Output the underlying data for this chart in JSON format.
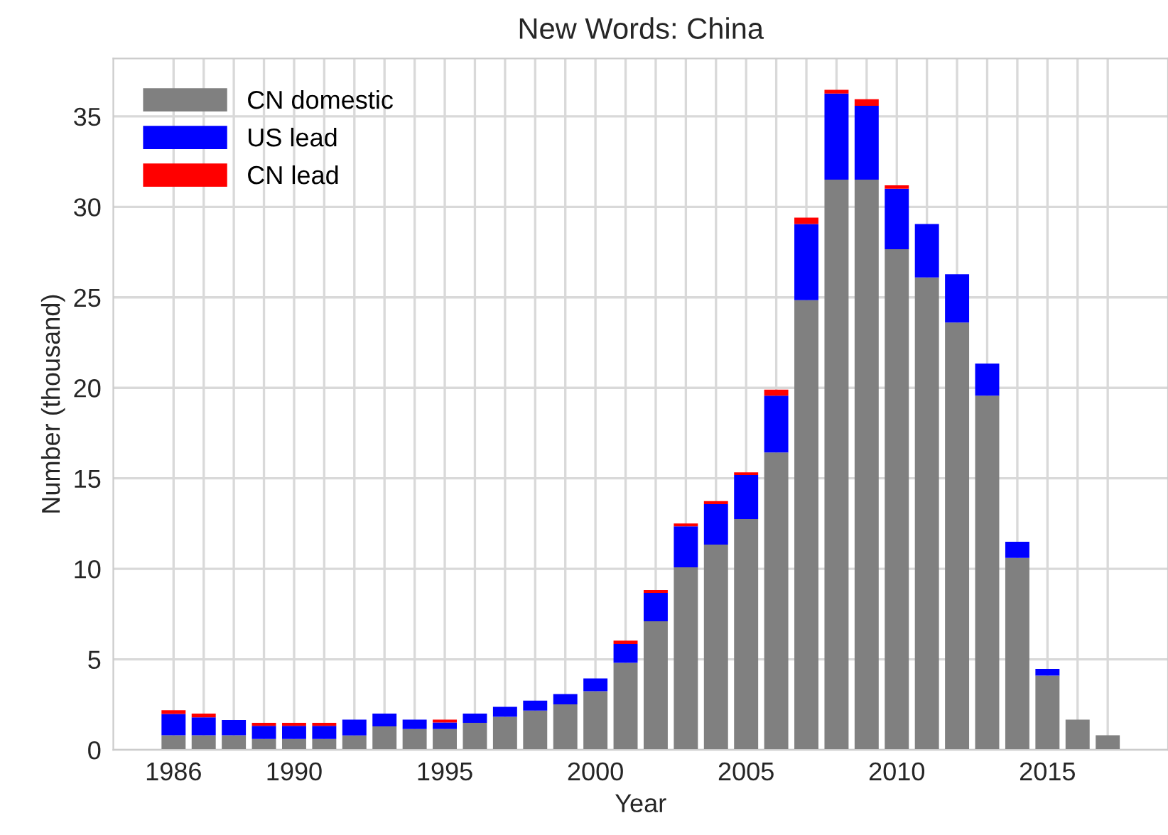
{
  "chart_data": {
    "type": "bar",
    "stacked": true,
    "title": "New Words: China",
    "xlabel": "Year",
    "ylabel": "Number (thousand)",
    "x": [
      1986,
      1987,
      1988,
      1989,
      1990,
      1991,
      1992,
      1993,
      1994,
      1995,
      1996,
      1997,
      1998,
      1999,
      2000,
      2001,
      2002,
      2003,
      2004,
      2005,
      2006,
      2007,
      2008,
      2009,
      2010,
      2011,
      2012,
      2013,
      2014,
      2015,
      2016,
      2017
    ],
    "series": [
      {
        "name": "CN domestic",
        "color": "#808080",
        "values": [
          0.81,
          0.81,
          0.81,
          0.6,
          0.6,
          0.6,
          0.8,
          1.3,
          1.15,
          1.15,
          1.49,
          1.83,
          2.17,
          2.51,
          3.24,
          4.81,
          7.1,
          10.08,
          11.34,
          12.75,
          16.43,
          24.84,
          31.5,
          31.5,
          27.66,
          26.1,
          23.61,
          19.57,
          10.6,
          4.1,
          1.67,
          0.81
        ]
      },
      {
        "name": "US lead",
        "color": "#0000ff",
        "values": [
          1.17,
          0.99,
          0.84,
          0.73,
          0.73,
          0.73,
          0.87,
          0.7,
          0.52,
          0.36,
          0.51,
          0.55,
          0.55,
          0.57,
          0.7,
          1.04,
          1.57,
          2.27,
          2.24,
          2.43,
          3.14,
          4.21,
          4.76,
          4.08,
          3.34,
          2.95,
          2.67,
          1.77,
          0.9,
          0.37,
          0,
          0
        ]
      },
      {
        "name": "CN lead",
        "color": "#ff0000",
        "values": [
          0.21,
          0.2,
          0,
          0.16,
          0.16,
          0.16,
          0,
          0,
          0,
          0.16,
          0,
          0,
          0,
          0,
          0,
          0.18,
          0.16,
          0.16,
          0.16,
          0.15,
          0.33,
          0.36,
          0.21,
          0.37,
          0.19,
          0,
          0,
          0,
          0,
          0,
          0,
          0
        ]
      }
    ],
    "xlim": [
      1984,
      2019
    ],
    "ylim": [
      0,
      38.2
    ],
    "xticks": [
      1986,
      {
        "value": 1987,
        "label": null
      },
      {
        "value": 1988,
        "label": null
      },
      {
        "value": 1989,
        "label": null
      },
      1990,
      {
        "value": 1991,
        "label": null
      },
      {
        "value": 1992,
        "label": null
      },
      {
        "value": 1993,
        "label": null
      },
      {
        "value": 1994,
        "label": null
      },
      1995,
      {
        "value": 1996,
        "label": null
      },
      {
        "value": 1997,
        "label": null
      },
      {
        "value": 1998,
        "label": null
      },
      {
        "value": 1999,
        "label": null
      },
      2000,
      {
        "value": 2001,
        "label": null
      },
      {
        "value": 2002,
        "label": null
      },
      {
        "value": 2003,
        "label": null
      },
      {
        "value": 2004,
        "label": null
      },
      2005,
      {
        "value": 2006,
        "label": null
      },
      {
        "value": 2007,
        "label": null
      },
      {
        "value": 2008,
        "label": null
      },
      {
        "value": 2009,
        "label": null
      },
      2010,
      {
        "value": 2011,
        "label": null
      },
      {
        "value": 2012,
        "label": null
      },
      {
        "value": 2013,
        "label": null
      },
      {
        "value": 2014,
        "label": null
      },
      2015,
      {
        "value": 2016,
        "label": null
      },
      {
        "value": 2017,
        "label": null
      }
    ],
    "yticks": [
      0,
      5,
      10,
      15,
      20,
      25,
      30,
      35
    ],
    "grid": true,
    "legend": "top left"
  }
}
